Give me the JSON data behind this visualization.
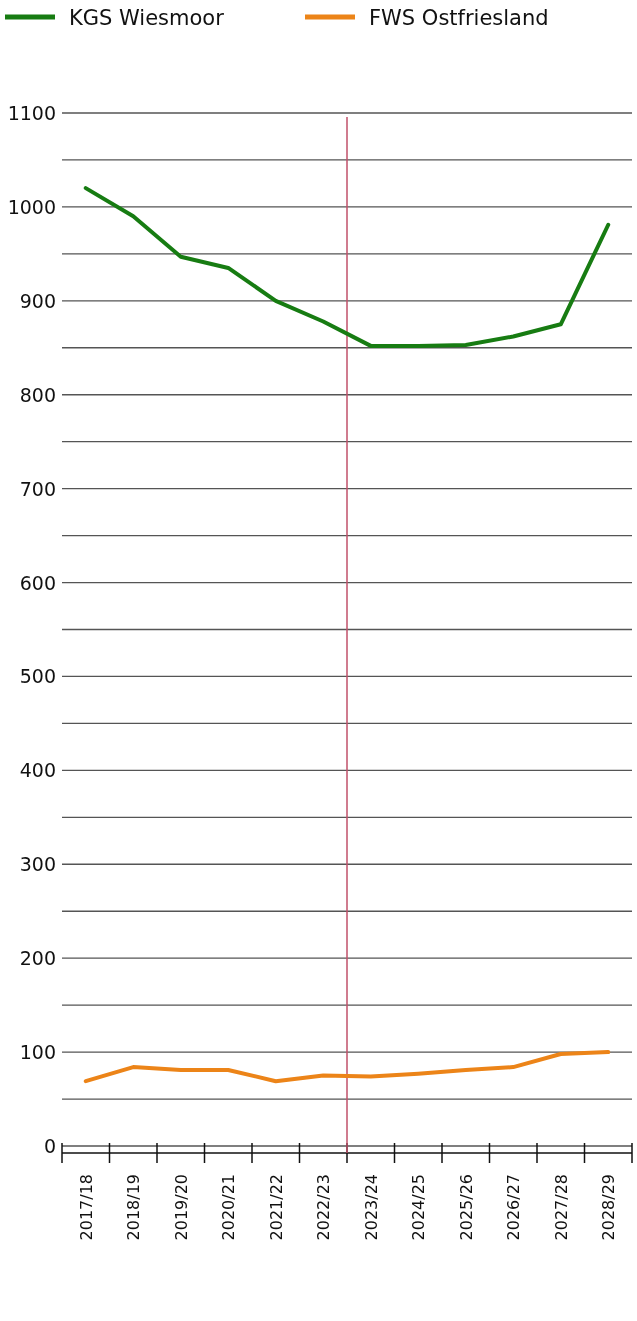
{
  "chart_data": {
    "type": "line",
    "categories": [
      "2017/18",
      "2018/19",
      "2019/20",
      "2020/21",
      "2021/22",
      "2022/23",
      "2023/24",
      "2024/25",
      "2025/26",
      "2026/27",
      "2027/28",
      "2028/29"
    ],
    "series": [
      {
        "name": "KGS Wiesmoor",
        "color": "#177c12",
        "values": [
          1020,
          990,
          947,
          935,
          900,
          878,
          852,
          852,
          853,
          862,
          875,
          981
        ]
      },
      {
        "name": "FWS Ostfriesland",
        "color": "#ec8418",
        "values": [
          69,
          84,
          81,
          81,
          69,
          75,
          74,
          77,
          81,
          84,
          98,
          100
        ]
      }
    ],
    "ylim": [
      0,
      1100
    ],
    "yticks": [
      0,
      {
        "value": 50,
        "label": null
      },
      100,
      {
        "value": 150,
        "label": null
      },
      200,
      {
        "value": 250,
        "label": null
      },
      300,
      {
        "value": 350,
        "label": null
      },
      400,
      {
        "value": 450,
        "label": null
      },
      500,
      {
        "value": 550,
        "label": null
      },
      600,
      {
        "value": 650,
        "label": null
      },
      700,
      {
        "value": 750,
        "label": null
      },
      800,
      {
        "value": 850,
        "label": null
      },
      900,
      {
        "value": 950,
        "label": null
      },
      1000,
      {
        "value": 1050,
        "label": null
      },
      1100
    ],
    "grid": "y",
    "legend": "top left",
    "ref_lines": [
      {
        "axis": "x",
        "value": "2023/24",
        "color": "#c0506a"
      }
    ]
  }
}
